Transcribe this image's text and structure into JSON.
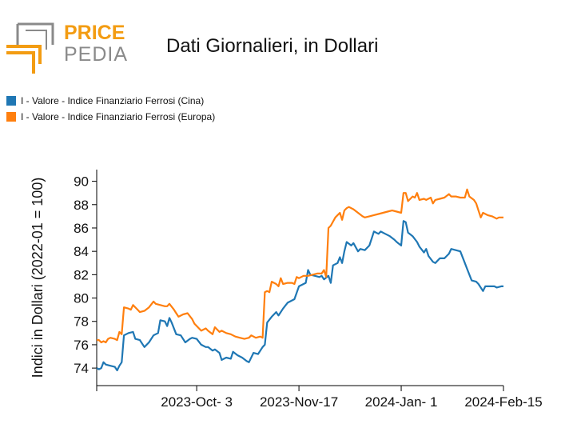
{
  "logo": {
    "text_top": "PRICE",
    "text_bottom": "PEDIA",
    "color_orange": "#F39C12",
    "color_grey": "#8A8A8A"
  },
  "chart_data": {
    "type": "line",
    "title": "Dati Giornalieri, in Dollari",
    "xlabel": "",
    "ylabel": "Indici in Dollari (2022-01 = 100)",
    "ylim": [
      72.5,
      91
    ],
    "yticks": [
      74,
      76,
      78,
      80,
      82,
      84,
      86,
      88,
      90
    ],
    "xlim": [
      "2023-08-20",
      "2024-02-15"
    ],
    "xticks": [
      {
        "date": "2023-10-03",
        "label": "2023-Oct- 3"
      },
      {
        "date": "2023-11-17",
        "label": "2023-Nov-17"
      },
      {
        "date": "2024-01-01",
        "label": "2024-Jan- 1"
      },
      {
        "date": "2024-02-15",
        "label": "2024-Feb-15"
      }
    ],
    "grid": false,
    "legend_position": "top-left",
    "series": [
      {
        "name": "I - Valore - Indice Finanziario Ferrosi (Cina)",
        "color": "#1F77B4",
        "points": [
          [
            "2023-08-20",
            74.0
          ],
          [
            "2023-08-21",
            73.9
          ],
          [
            "2023-08-22",
            74.0
          ],
          [
            "2023-08-23",
            74.5
          ],
          [
            "2023-08-24",
            74.3
          ],
          [
            "2023-08-26",
            74.2
          ],
          [
            "2023-08-28",
            74.1
          ],
          [
            "2023-08-29",
            73.8
          ],
          [
            "2023-08-30",
            74.2
          ],
          [
            "2023-08-31",
            74.5
          ],
          [
            "2023-09-01",
            76.8
          ],
          [
            "2023-09-03",
            77.0
          ],
          [
            "2023-09-05",
            77.1
          ],
          [
            "2023-09-06",
            76.5
          ],
          [
            "2023-09-08",
            76.4
          ],
          [
            "2023-09-10",
            75.8
          ],
          [
            "2023-09-12",
            76.2
          ],
          [
            "2023-09-14",
            76.8
          ],
          [
            "2023-09-16",
            77.0
          ],
          [
            "2023-09-17",
            78.1
          ],
          [
            "2023-09-19",
            78.0
          ],
          [
            "2023-09-20",
            77.6
          ],
          [
            "2023-09-21",
            78.3
          ],
          [
            "2023-09-22",
            77.9
          ],
          [
            "2023-09-24",
            76.9
          ],
          [
            "2023-09-26",
            76.8
          ],
          [
            "2023-09-28",
            76.2
          ],
          [
            "2023-09-30",
            76.5
          ],
          [
            "2023-10-01",
            76.6
          ],
          [
            "2023-10-03",
            76.5
          ],
          [
            "2023-10-05",
            76.0
          ],
          [
            "2023-10-07",
            75.8
          ],
          [
            "2023-10-08",
            75.8
          ],
          [
            "2023-10-10",
            75.5
          ],
          [
            "2023-10-11",
            75.6
          ],
          [
            "2023-10-13",
            75.3
          ],
          [
            "2023-10-14",
            74.7
          ],
          [
            "2023-10-16",
            74.9
          ],
          [
            "2023-10-18",
            74.8
          ],
          [
            "2023-10-19",
            75.4
          ],
          [
            "2023-10-21",
            75.1
          ],
          [
            "2023-10-23",
            74.9
          ],
          [
            "2023-10-25",
            74.6
          ],
          [
            "2023-10-26",
            74.5
          ],
          [
            "2023-10-28",
            75.3
          ],
          [
            "2023-10-30",
            75.2
          ],
          [
            "2023-11-01",
            75.8
          ],
          [
            "2023-11-02",
            76.0
          ],
          [
            "2023-11-03",
            77.9
          ],
          [
            "2023-11-05",
            78.4
          ],
          [
            "2023-11-07",
            78.8
          ],
          [
            "2023-11-08",
            78.5
          ],
          [
            "2023-11-10",
            79.1
          ],
          [
            "2023-11-12",
            79.6
          ],
          [
            "2023-11-14",
            79.8
          ],
          [
            "2023-11-15",
            79.9
          ],
          [
            "2023-11-17",
            81.0
          ],
          [
            "2023-11-19",
            81.2
          ],
          [
            "2023-11-20",
            81.3
          ],
          [
            "2023-11-21",
            82.4
          ],
          [
            "2023-11-22",
            82.0
          ],
          [
            "2023-11-24",
            81.9
          ],
          [
            "2023-11-26",
            81.8
          ],
          [
            "2023-11-27",
            81.9
          ],
          [
            "2023-11-28",
            81.6
          ],
          [
            "2023-11-30",
            81.9
          ],
          [
            "2023-12-01",
            81.3
          ],
          [
            "2023-12-02",
            82.8
          ],
          [
            "2023-12-04",
            83.0
          ],
          [
            "2023-12-05",
            83.5
          ],
          [
            "2023-12-06",
            83.0
          ],
          [
            "2023-12-07",
            84.0
          ],
          [
            "2023-12-08",
            84.8
          ],
          [
            "2023-12-10",
            84.5
          ],
          [
            "2023-12-11",
            84.7
          ],
          [
            "2023-12-13",
            84.0
          ],
          [
            "2023-12-14",
            84.2
          ],
          [
            "2023-12-16",
            84.1
          ],
          [
            "2023-12-18",
            84.5
          ],
          [
            "2023-12-19",
            85.1
          ],
          [
            "2023-12-20",
            85.7
          ],
          [
            "2023-12-22",
            85.5
          ],
          [
            "2023-12-23",
            85.7
          ],
          [
            "2023-12-25",
            85.5
          ],
          [
            "2023-12-27",
            85.3
          ],
          [
            "2023-12-29",
            85.0
          ],
          [
            "2023-12-30",
            84.8
          ],
          [
            "2024-01-01",
            84.5
          ],
          [
            "2024-01-02",
            86.6
          ],
          [
            "2024-01-03",
            86.5
          ],
          [
            "2024-01-04",
            85.6
          ],
          [
            "2024-01-06",
            85.3
          ],
          [
            "2024-01-08",
            84.8
          ],
          [
            "2024-01-09",
            84.4
          ],
          [
            "2024-01-11",
            83.9
          ],
          [
            "2024-01-12",
            84.2
          ],
          [
            "2024-01-13",
            83.6
          ],
          [
            "2024-01-15",
            83.1
          ],
          [
            "2024-01-16",
            83.0
          ],
          [
            "2024-01-18",
            83.4
          ],
          [
            "2024-01-20",
            83.4
          ],
          [
            "2024-01-22",
            83.8
          ],
          [
            "2024-01-23",
            84.2
          ],
          [
            "2024-01-25",
            84.1
          ],
          [
            "2024-01-27",
            84.0
          ],
          [
            "2024-01-29",
            83.0
          ],
          [
            "2024-01-30",
            82.5
          ],
          [
            "2024-02-01",
            81.5
          ],
          [
            "2024-02-03",
            81.4
          ],
          [
            "2024-02-04",
            81.2
          ],
          [
            "2024-02-06",
            80.6
          ],
          [
            "2024-02-07",
            81.0
          ],
          [
            "2024-02-09",
            81.0
          ],
          [
            "2024-02-11",
            81.0
          ],
          [
            "2024-02-12",
            80.9
          ],
          [
            "2024-02-14",
            81.0
          ],
          [
            "2024-02-15",
            81.0
          ]
        ]
      },
      {
        "name": "I - Valore - Indice Finanziario Ferrosi (Europa)",
        "color": "#FF7F0E",
        "points": [
          [
            "2023-08-20",
            76.4
          ],
          [
            "2023-08-21",
            76.4
          ],
          [
            "2023-08-22",
            76.2
          ],
          [
            "2023-08-23",
            76.3
          ],
          [
            "2023-08-24",
            76.2
          ],
          [
            "2023-08-25",
            76.5
          ],
          [
            "2023-08-26",
            76.6
          ],
          [
            "2023-08-28",
            76.5
          ],
          [
            "2023-08-29",
            76.4
          ],
          [
            "2023-08-30",
            77.1
          ],
          [
            "2023-08-31",
            76.9
          ],
          [
            "2023-09-01",
            79.2
          ],
          [
            "2023-09-03",
            79.1
          ],
          [
            "2023-09-04",
            79.0
          ],
          [
            "2023-09-05",
            79.4
          ],
          [
            "2023-09-07",
            79.0
          ],
          [
            "2023-09-08",
            78.8
          ],
          [
            "2023-09-10",
            78.9
          ],
          [
            "2023-09-12",
            79.2
          ],
          [
            "2023-09-14",
            79.7
          ],
          [
            "2023-09-15",
            79.5
          ],
          [
            "2023-09-17",
            79.4
          ],
          [
            "2023-09-19",
            79.3
          ],
          [
            "2023-09-20",
            79.3
          ],
          [
            "2023-09-21",
            79.5
          ],
          [
            "2023-09-23",
            79.0
          ],
          [
            "2023-09-24",
            78.7
          ],
          [
            "2023-09-25",
            78.4
          ],
          [
            "2023-09-27",
            78.6
          ],
          [
            "2023-09-29",
            78.7
          ],
          [
            "2023-10-01",
            78.2
          ],
          [
            "2023-10-02",
            77.8
          ],
          [
            "2023-10-04",
            77.4
          ],
          [
            "2023-10-05",
            77.2
          ],
          [
            "2023-10-07",
            77.4
          ],
          [
            "2023-10-08",
            77.2
          ],
          [
            "2023-10-10",
            76.9
          ],
          [
            "2023-10-11",
            77.5
          ],
          [
            "2023-10-13",
            77.1
          ],
          [
            "2023-10-14",
            77.2
          ],
          [
            "2023-10-16",
            77.0
          ],
          [
            "2023-10-18",
            76.9
          ],
          [
            "2023-10-20",
            76.7
          ],
          [
            "2023-10-22",
            76.6
          ],
          [
            "2023-10-24",
            76.5
          ],
          [
            "2023-10-26",
            76.6
          ],
          [
            "2023-10-27",
            76.8
          ],
          [
            "2023-10-29",
            76.6
          ],
          [
            "2023-10-31",
            76.7
          ],
          [
            "2023-11-01",
            76.6
          ],
          [
            "2023-11-02",
            80.5
          ],
          [
            "2023-11-03",
            80.6
          ],
          [
            "2023-11-04",
            80.5
          ],
          [
            "2023-11-05",
            81.4
          ],
          [
            "2023-11-07",
            81.2
          ],
          [
            "2023-11-08",
            81.0
          ],
          [
            "2023-11-09",
            81.7
          ],
          [
            "2023-11-10",
            81.2
          ],
          [
            "2023-11-12",
            81.3
          ],
          [
            "2023-11-14",
            81.3
          ],
          [
            "2023-11-15",
            81.2
          ],
          [
            "2023-11-16",
            81.8
          ],
          [
            "2023-11-17",
            81.7
          ],
          [
            "2023-11-19",
            81.9
          ],
          [
            "2023-11-21",
            81.9
          ],
          [
            "2023-11-23",
            82.0
          ],
          [
            "2023-11-25",
            82.1
          ],
          [
            "2023-11-27",
            82.1
          ],
          [
            "2023-11-28",
            82.4
          ],
          [
            "2023-11-29",
            81.8
          ],
          [
            "2023-11-30",
            86.0
          ],
          [
            "2023-12-01",
            86.2
          ],
          [
            "2023-12-03",
            86.9
          ],
          [
            "2023-12-05",
            87.3
          ],
          [
            "2023-12-06",
            86.7
          ],
          [
            "2023-12-07",
            87.5
          ],
          [
            "2023-12-08",
            87.7
          ],
          [
            "2023-12-09",
            87.8
          ],
          [
            "2023-12-11",
            87.6
          ],
          [
            "2023-12-13",
            87.3
          ],
          [
            "2023-12-15",
            87.0
          ],
          [
            "2023-12-16",
            86.9
          ],
          [
            "2023-12-18",
            87.0
          ],
          [
            "2023-12-20",
            87.1
          ],
          [
            "2023-12-22",
            87.2
          ],
          [
            "2023-12-24",
            87.3
          ],
          [
            "2023-12-26",
            87.4
          ],
          [
            "2023-12-28",
            87.5
          ],
          [
            "2023-12-30",
            87.4
          ],
          [
            "2024-01-01",
            87.3
          ],
          [
            "2024-01-02",
            89.0
          ],
          [
            "2024-01-03",
            89.0
          ],
          [
            "2024-01-04",
            88.3
          ],
          [
            "2024-01-06",
            88.7
          ],
          [
            "2024-01-07",
            88.6
          ],
          [
            "2024-01-08",
            89.0
          ],
          [
            "2024-01-09",
            88.4
          ],
          [
            "2024-01-11",
            88.5
          ],
          [
            "2024-01-12",
            88.4
          ],
          [
            "2024-01-14",
            88.6
          ],
          [
            "2024-01-15",
            88.1
          ],
          [
            "2024-01-16",
            88.4
          ],
          [
            "2024-01-18",
            88.5
          ],
          [
            "2024-01-20",
            88.6
          ],
          [
            "2024-01-22",
            88.9
          ],
          [
            "2024-01-23",
            88.7
          ],
          [
            "2024-01-25",
            88.7
          ],
          [
            "2024-01-27",
            88.6
          ],
          [
            "2024-01-29",
            88.6
          ],
          [
            "2024-01-30",
            89.3
          ],
          [
            "2024-01-31",
            88.7
          ],
          [
            "2024-02-02",
            88.4
          ],
          [
            "2024-02-03",
            88.1
          ],
          [
            "2024-02-04",
            87.5
          ],
          [
            "2024-02-05",
            86.9
          ],
          [
            "2024-02-06",
            87.3
          ],
          [
            "2024-02-08",
            87.1
          ],
          [
            "2024-02-10",
            87.0
          ],
          [
            "2024-02-12",
            86.8
          ],
          [
            "2024-02-13",
            86.9
          ],
          [
            "2024-02-15",
            86.9
          ]
        ]
      }
    ]
  }
}
